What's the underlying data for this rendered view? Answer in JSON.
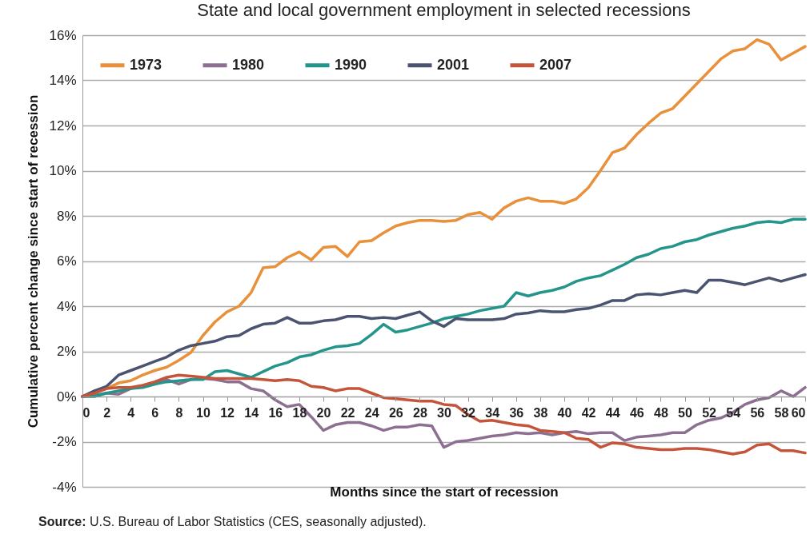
{
  "chart_data": {
    "type": "line",
    "title": "State and local government employment in selected recessions",
    "xlabel": "Months since the start of recession",
    "ylabel": "Cumulative percent change since start of recession",
    "x": [
      0,
      1,
      2,
      3,
      4,
      5,
      6,
      7,
      8,
      9,
      10,
      11,
      12,
      13,
      14,
      15,
      16,
      17,
      18,
      19,
      20,
      21,
      22,
      23,
      24,
      25,
      26,
      27,
      28,
      29,
      30,
      31,
      32,
      33,
      34,
      35,
      36,
      37,
      38,
      39,
      40,
      41,
      42,
      43,
      44,
      45,
      46,
      47,
      48,
      49,
      50,
      51,
      52,
      53,
      54,
      55,
      56,
      57,
      58,
      59,
      60
    ],
    "series": [
      {
        "name": "1973",
        "color": "#e8903a",
        "values": [
          0,
          0.2,
          0.35,
          0.6,
          0.7,
          0.95,
          1.15,
          1.3,
          1.6,
          1.95,
          2.7,
          3.3,
          3.75,
          4.0,
          4.6,
          5.7,
          5.75,
          6.15,
          6.4,
          6.05,
          6.6,
          6.65,
          6.2,
          6.85,
          6.9,
          7.25,
          7.55,
          7.7,
          7.8,
          7.8,
          7.75,
          7.8,
          8.05,
          8.15,
          7.85,
          8.35,
          8.65,
          8.8,
          8.65,
          8.65,
          8.55,
          8.75,
          9.25,
          10.0,
          10.8,
          11.0,
          11.6,
          12.1,
          12.55,
          12.75,
          13.3,
          13.85,
          14.4,
          14.95,
          15.3,
          15.4,
          15.8,
          15.6,
          14.9,
          15.2,
          15.5
        ]
      },
      {
        "name": "1980",
        "color": "#8c6f91",
        "values": [
          0,
          0.05,
          0.15,
          0.1,
          0.35,
          0.45,
          0.55,
          0.75,
          0.55,
          0.75,
          0.8,
          0.75,
          0.65,
          0.65,
          0.35,
          0.25,
          -0.15,
          -0.45,
          -0.35,
          -0.9,
          -1.5,
          -1.25,
          -1.15,
          -1.15,
          -1.3,
          -1.5,
          -1.35,
          -1.35,
          -1.25,
          -1.3,
          -2.25,
          -2.0,
          -1.95,
          -1.85,
          -1.75,
          -1.7,
          -1.6,
          -1.65,
          -1.6,
          -1.7,
          -1.6,
          -1.55,
          -1.65,
          -1.6,
          -1.6,
          -1.95,
          -1.8,
          -1.75,
          -1.7,
          -1.6,
          -1.6,
          -1.25,
          -1.05,
          -0.95,
          -0.7,
          -0.35,
          -0.15,
          -0.05,
          0.25,
          0.0,
          0.4
        ]
      },
      {
        "name": "1990",
        "color": "#23958a",
        "values": [
          0,
          0,
          0.15,
          0.25,
          0.35,
          0.4,
          0.55,
          0.65,
          0.7,
          0.75,
          0.75,
          1.1,
          1.15,
          1.0,
          0.85,
          1.1,
          1.35,
          1.5,
          1.75,
          1.85,
          2.05,
          2.2,
          2.25,
          2.35,
          2.75,
          3.2,
          2.85,
          2.95,
          3.1,
          3.25,
          3.45,
          3.55,
          3.65,
          3.8,
          3.9,
          4.0,
          4.6,
          4.45,
          4.6,
          4.7,
          4.85,
          5.1,
          5.25,
          5.35,
          5.6,
          5.85,
          6.15,
          6.3,
          6.55,
          6.65,
          6.85,
          6.95,
          7.15,
          7.3,
          7.45,
          7.55,
          7.7,
          7.75,
          7.7,
          7.85,
          7.85
        ]
      },
      {
        "name": "2001",
        "color": "#4a5470",
        "values": [
          0,
          0.25,
          0.45,
          0.95,
          1.15,
          1.35,
          1.55,
          1.75,
          2.05,
          2.25,
          2.35,
          2.45,
          2.65,
          2.7,
          3.0,
          3.2,
          3.25,
          3.5,
          3.25,
          3.25,
          3.35,
          3.4,
          3.55,
          3.55,
          3.45,
          3.5,
          3.45,
          3.6,
          3.75,
          3.35,
          3.1,
          3.45,
          3.4,
          3.4,
          3.4,
          3.45,
          3.65,
          3.7,
          3.8,
          3.75,
          3.75,
          3.85,
          3.9,
          4.05,
          4.25,
          4.25,
          4.5,
          4.55,
          4.5,
          4.6,
          4.7,
          4.6,
          5.15,
          5.15,
          5.05,
          4.95,
          5.1,
          5.25,
          5.1,
          5.25,
          5.4
        ]
      },
      {
        "name": "2007",
        "color": "#c4543a",
        "values": [
          0,
          0.15,
          0.35,
          0.4,
          0.4,
          0.5,
          0.65,
          0.85,
          0.95,
          0.9,
          0.85,
          0.8,
          0.8,
          0.8,
          0.8,
          0.75,
          0.7,
          0.75,
          0.7,
          0.45,
          0.4,
          0.25,
          0.35,
          0.35,
          0.15,
          -0.05,
          -0.1,
          -0.15,
          -0.2,
          -0.2,
          -0.35,
          -0.4,
          -0.8,
          -1.1,
          -1.05,
          -1.15,
          -1.25,
          -1.3,
          -1.5,
          -1.55,
          -1.6,
          -1.85,
          -1.9,
          -2.25,
          -2.05,
          -2.1,
          -2.25,
          -2.3,
          -2.35,
          -2.35,
          -2.3,
          -2.3,
          -2.35,
          -2.45,
          -2.55,
          -2.45,
          -2.15,
          -2.1,
          -2.4,
          -2.4,
          -2.5
        ]
      }
    ],
    "xlim": [
      0,
      60
    ],
    "xticks": [
      0,
      2,
      4,
      6,
      8,
      10,
      12,
      14,
      16,
      18,
      20,
      22,
      24,
      26,
      28,
      30,
      32,
      34,
      36,
      38,
      40,
      42,
      44,
      46,
      48,
      50,
      52,
      54,
      56,
      58,
      60
    ],
    "ylim": [
      -4,
      16
    ],
    "yticks": [
      {
        "value": -4,
        "label": "-4%"
      },
      {
        "value": -2,
        "label": "-2%"
      },
      {
        "value": 0,
        "label": "0%"
      },
      {
        "value": 2,
        "label": "2%"
      },
      {
        "value": 4,
        "label": "4%"
      },
      {
        "value": 6,
        "label": "6%"
      },
      {
        "value": 8,
        "label": "8%"
      },
      {
        "value": 10,
        "label": "10%"
      },
      {
        "value": 12,
        "label": "12%"
      },
      {
        "value": 14,
        "label": "14%"
      },
      {
        "value": 16,
        "label": "16%"
      }
    ],
    "grid": "y",
    "legend": "top left",
    "marker": "none",
    "line_style": "solid",
    "annotations": [
      "Source: U.S. Bureau of Labor Statistics (CES, seasonally adjusted)."
    ]
  }
}
